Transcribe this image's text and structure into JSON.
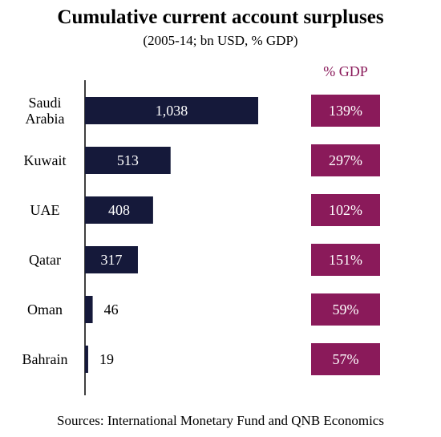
{
  "title": "Cumulative current account surpluses",
  "subtitle": "(2005-14; bn USD, % GDP)",
  "gdp_header": "% GDP",
  "source": "Sources: International Monetary Fund and QNB Economics",
  "colors": {
    "bar": "#15193a",
    "gdp_box": "#8a1a5a",
    "gdp_header": "#8a1a5a"
  },
  "chart_data": {
    "type": "bar",
    "orientation": "horizontal",
    "title": "Cumulative current account surpluses",
    "subtitle": "(2005-14; bn USD, % GDP)",
    "categories": [
      "Saudi Arabia",
      "Kuwait",
      "UAE",
      "Qatar",
      "Oman",
      "Bahrain"
    ],
    "category_lines": [
      [
        "Saudi",
        "Arabia"
      ],
      [
        "Kuwait"
      ],
      [
        "UAE"
      ],
      [
        "Qatar"
      ],
      [
        "Oman"
      ],
      [
        "Bahrain"
      ]
    ],
    "values": [
      1038,
      513,
      408,
      317,
      46,
      19
    ],
    "value_labels": [
      "1,038",
      "513",
      "408",
      "317",
      "46",
      "19"
    ],
    "gdp_labels": [
      "139%",
      "297%",
      "102%",
      "151%",
      "59%",
      "57%"
    ],
    "gdp_header": "% GDP",
    "xlim": [
      0,
      1038
    ]
  }
}
